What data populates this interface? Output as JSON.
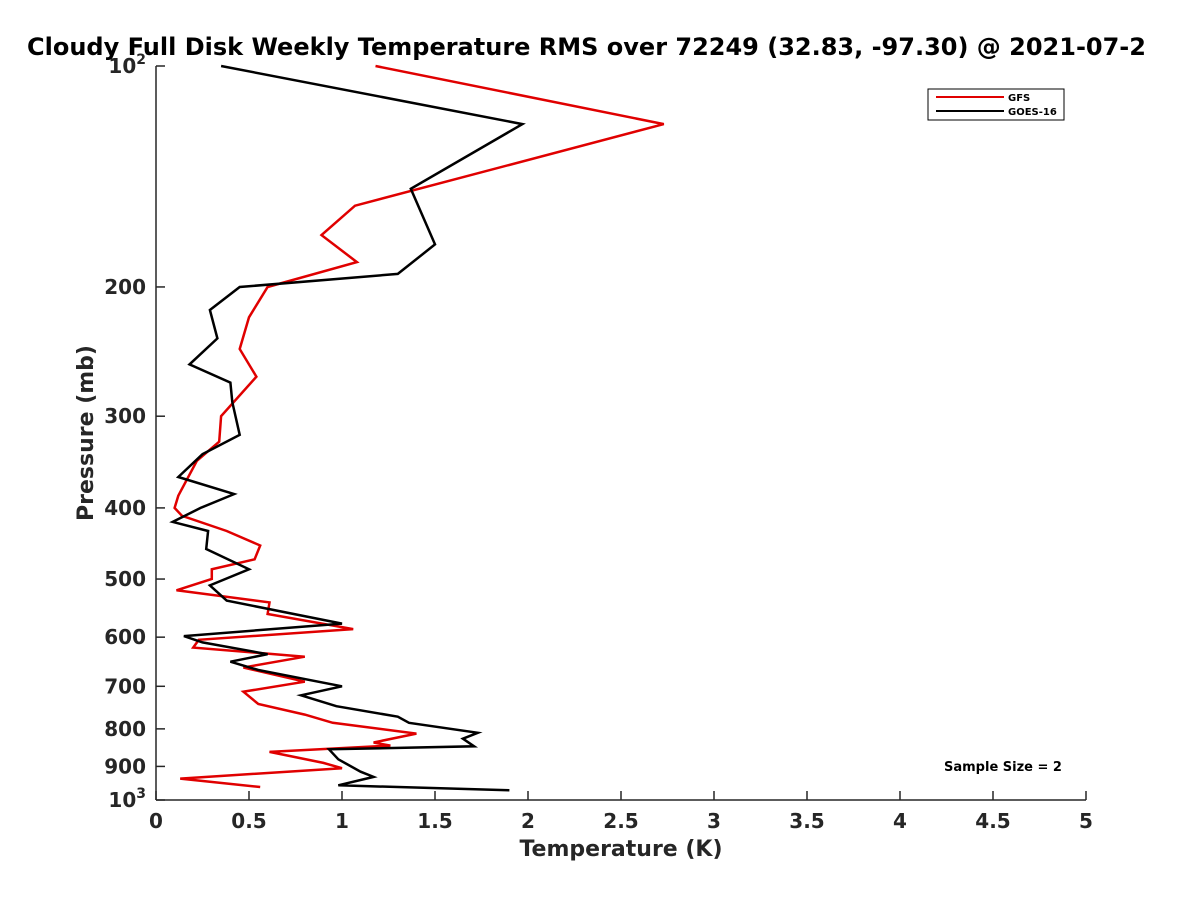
{
  "chart_data": {
    "type": "line",
    "title": "Cloudy Full Disk Weekly Temperature RMS over 72249 (32.83, -97.30) @ 2021-07-2",
    "xlabel": "Temperature (K)",
    "ylabel": "Pressure (mb)",
    "xlim": [
      0,
      5
    ],
    "ylim": [
      100,
      1000
    ],
    "yscale": "log",
    "y_reversed": true,
    "grid": false,
    "legend_position": "top-right",
    "x_ticks": [
      "0",
      "0.5",
      "1",
      "1.5",
      "2",
      "2.5",
      "3",
      "3.5",
      "4",
      "4.5",
      "5"
    ],
    "y_ticks": [
      {
        "value": 100,
        "label": "10",
        "sup": "2"
      },
      {
        "value": 200,
        "label": "200",
        "sup": ""
      },
      {
        "value": 300,
        "label": "300",
        "sup": ""
      },
      {
        "value": 400,
        "label": "400",
        "sup": ""
      },
      {
        "value": 500,
        "label": "500",
        "sup": ""
      },
      {
        "value": 600,
        "label": "600",
        "sup": ""
      },
      {
        "value": 700,
        "label": "700",
        "sup": ""
      },
      {
        "value": 800,
        "label": "800",
        "sup": ""
      },
      {
        "value": 900,
        "label": "900",
        "sup": ""
      },
      {
        "value": 1000,
        "label": "10",
        "sup": "3"
      }
    ],
    "series": [
      {
        "name": "GFS",
        "color": "#e00000",
        "x": [
          1.18,
          2.73,
          1.07,
          0.89,
          1.08,
          0.6,
          0.5,
          0.45,
          0.54,
          0.35,
          0.34,
          0.22,
          0.12,
          0.1,
          0.14,
          0.38,
          0.56,
          0.53,
          0.3,
          0.3,
          0.11,
          0.61,
          0.6,
          1.06,
          0.23,
          0.2,
          0.8,
          0.47,
          0.8,
          0.47,
          0.55,
          0.8,
          0.95,
          1.4,
          1.17,
          1.26,
          0.61,
          0.9,
          1.0,
          0.13,
          0.56
        ],
        "y": [
          100,
          120,
          155,
          170,
          185,
          200,
          220,
          243,
          265,
          300,
          325,
          345,
          385,
          400,
          410,
          430,
          450,
          470,
          485,
          500,
          518,
          538,
          558,
          585,
          605,
          620,
          638,
          660,
          690,
          712,
          740,
          765,
          785,
          812,
          835,
          843,
          860,
          890,
          905,
          935,
          960
        ]
      },
      {
        "name": "GOES-16",
        "color": "#000000",
        "x": [
          0.35,
          1.97,
          1.37,
          1.5,
          1.3,
          0.45,
          0.29,
          0.33,
          0.18,
          0.4,
          0.41,
          0.45,
          0.25,
          0.12,
          0.42,
          0.24,
          0.09,
          0.28,
          0.27,
          0.5,
          0.29,
          0.38,
          1.0,
          0.15,
          0.25,
          0.6,
          0.4,
          0.55,
          1.0,
          0.78,
          0.97,
          1.3,
          1.36,
          1.73,
          1.65,
          1.71,
          0.93,
          0.98,
          1.1,
          1.17,
          0.98,
          1.9
        ],
        "y": [
          100,
          120,
          147,
          175,
          192,
          200,
          215,
          235,
          255,
          270,
          287,
          318,
          338,
          363,
          383,
          400,
          418,
          430,
          455,
          485,
          510,
          535,
          575,
          598,
          610,
          633,
          648,
          665,
          700,
          720,
          745,
          770,
          785,
          810,
          825,
          845,
          853,
          880,
          915,
          930,
          955,
          970
        ]
      }
    ],
    "annotations": [
      "Sample Size = 2"
    ]
  }
}
